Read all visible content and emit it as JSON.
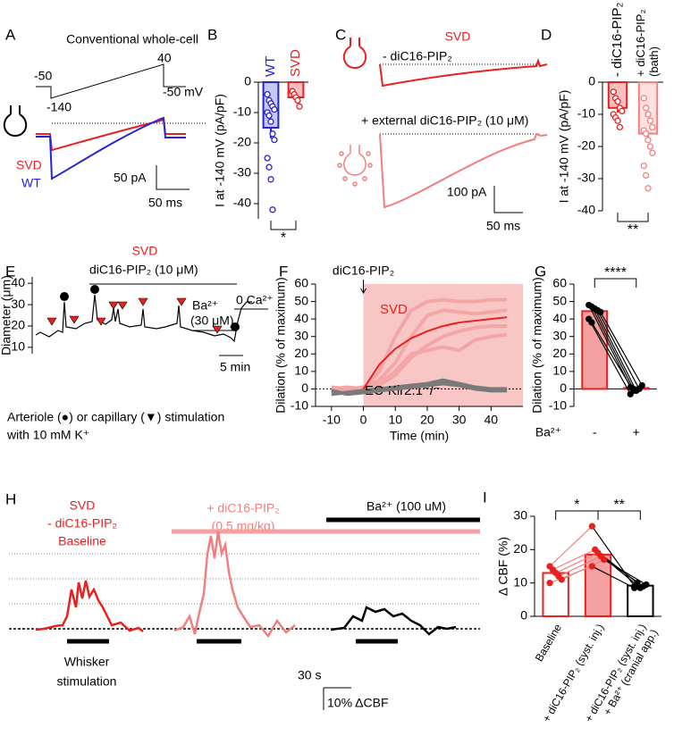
{
  "chart_data": [
    {
      "type": "bar",
      "panel": "B",
      "ylabel": "I at -140 mV (pA/pF)",
      "categories": [
        [
          "WT"
        ],
        [
          "SVD"
        ]
      ],
      "category_colors": [
        "#2424d8",
        "#e8201e"
      ],
      "colors": [
        "#2424d8",
        "#e8201e"
      ],
      "fills": [
        "#c8c8f4",
        "#f8c0c0"
      ],
      "point_colors": [
        "#2424d8",
        "#e8201e"
      ],
      "values": [
        -15,
        -5
      ],
      "errors": [
        3.5,
        1.2
      ],
      "points": [
        [
          -4,
          -6,
          -7,
          -8,
          -9,
          -10,
          -11,
          -13,
          -17,
          -19,
          -25,
          -28,
          -32,
          -42
        ],
        [
          -3,
          -4,
          -5,
          -6,
          -8
        ]
      ],
      "paired": false,
      "category_labels": "top-rotated",
      "ylim": [
        -45,
        0
      ],
      "yticks": [
        0,
        -10,
        -20,
        -30,
        -40
      ],
      "significance": [
        "*"
      ],
      "significance_position": "below"
    },
    {
      "type": "bar",
      "panel": "D",
      "ylabel": "I at -140 mV (pA/pF)",
      "categories": [
        [
          "- diC16-PIP₂"
        ],
        [
          "+ diC16-PIP₂",
          "(bath)"
        ]
      ],
      "colors": [
        "#e8201e",
        "#f08080"
      ],
      "fills": [
        "#f8c0c0",
        "#fde0e0"
      ],
      "point_colors": [
        "#e8201e",
        "#f08080"
      ],
      "values": [
        -8,
        -16
      ],
      "errors": [
        1.5,
        2.5
      ],
      "points": [
        [
          -3,
          -5,
          -6,
          -8,
          -9,
          -10,
          -11,
          -12,
          -14
        ],
        [
          -5,
          -8,
          -10,
          -12,
          -14,
          -15,
          -16,
          -18,
          -20,
          -22,
          -26,
          -29,
          -33
        ]
      ],
      "paired": false,
      "category_labels": "top-rotated",
      "ylim": [
        -40,
        0
      ],
      "yticks": [
        0,
        -10,
        -20,
        -30,
        -40
      ],
      "significance": [
        "**"
      ],
      "significance_position": "below"
    },
    {
      "type": "line",
      "panel": "F",
      "ylabel": "Dilation (% of maximum)",
      "xlabel": "Time (min)",
      "annotation": "diC16-PIP₂",
      "x": [
        -10,
        -5,
        0,
        5,
        10,
        15,
        20,
        25,
        30,
        35,
        40,
        45
      ],
      "series": [
        {
          "color": "#f4a6a6",
          "values": [
            0,
            1,
            0,
            10,
            30,
            45,
            50,
            51,
            50,
            50,
            51,
            51
          ]
        },
        {
          "color": "#f4a6a6",
          "values": [
            -2,
            0,
            1,
            5,
            15,
            30,
            42,
            45,
            44,
            43,
            44,
            45
          ]
        },
        {
          "color": "#f4a6a6",
          "values": [
            1,
            0,
            -2,
            2,
            8,
            18,
            25,
            30,
            33,
            35,
            36,
            36
          ]
        },
        {
          "color": "#f4a6a6",
          "values": [
            0,
            -1,
            0,
            3,
            10,
            20,
            22,
            24,
            22,
            28,
            30,
            31
          ]
        },
        {
          "name": "EC-Kir2.1⁻/⁻",
          "color": "#7a7a7a",
          "values": [
            -3,
            -2,
            -1,
            0,
            1,
            2,
            3,
            5,
            3,
            1,
            0,
            0
          ]
        },
        {
          "color": "#7a7a7a",
          "values": [
            -1,
            -3,
            -2,
            -1,
            0,
            1,
            2,
            3,
            2,
            0,
            -1,
            -1
          ]
        },
        {
          "name": "SVD",
          "color": "#e8201e",
          "values": [
            null,
            null,
            0,
            14,
            23,
            29,
            33,
            36,
            38,
            39,
            40,
            41
          ]
        }
      ],
      "xlim": [
        -15,
        50
      ],
      "xticks": [
        -10,
        0,
        10,
        20,
        30,
        40
      ],
      "ylim": [
        -10,
        60
      ],
      "yticks": [
        -10,
        0,
        10,
        20,
        30,
        40,
        50,
        60
      ],
      "shaded": [
        0,
        50
      ]
    },
    {
      "type": "bar",
      "panel": "G",
      "ylabel": "Dilation (% of maximum)",
      "xlabel": "Ba²⁺",
      "categories": [
        [
          "-"
        ],
        [
          "+"
        ]
      ],
      "colors": [
        "#e8201e",
        "#e8201e"
      ],
      "fills": [
        "#f4a0a0",
        "#f4a0a0"
      ],
      "point_colors": [
        "#000000",
        "#000000"
      ],
      "values": [
        44.5,
        0.5
      ],
      "errors": [
        3,
        1
      ],
      "points": [
        [
          48,
          47,
          46,
          45,
          44,
          40,
          38
        ],
        [
          1,
          0,
          -1,
          0,
          2,
          -3,
          -1
        ]
      ],
      "paired": true,
      "category_labels": "bottom",
      "ylim": [
        -10,
        60
      ],
      "yticks": [
        -10,
        0,
        10,
        20,
        30,
        40,
        50,
        60
      ],
      "significance": [
        "****"
      ],
      "significance_position": "above"
    },
    {
      "type": "bar",
      "panel": "I",
      "ylabel": "Δ CBF (%)",
      "categories": [
        [
          "Baseline"
        ],
        [
          "+ diC16-PIP₂ (syst. inj.)"
        ],
        [
          "+ diC16-PIP₂ (syst. inj.)",
          "+ Ba²⁺ (cranial app.)"
        ]
      ],
      "colors": [
        "#e8201e",
        "#e8201e",
        "#000000"
      ],
      "fills": [
        "#ffffff",
        "#f4a0a0",
        "#ffffff"
      ],
      "point_colors": [
        "#e8201e",
        "#e8201e",
        "#000000"
      ],
      "values": [
        13,
        18.5,
        9.2
      ],
      "errors": [
        1,
        1.5,
        0.4
      ],
      "points": [
        [
          15,
          14,
          13,
          12,
          11,
          10
        ],
        [
          27,
          20,
          19,
          18,
          17,
          15
        ],
        [
          9,
          10,
          8.5,
          9,
          9.5,
          8.5
        ]
      ],
      "paired": true,
      "category_labels": "bottom-rotated",
      "ylim": [
        0,
        30
      ],
      "yticks": [
        0,
        10,
        20,
        30
      ],
      "significance": [
        "*",
        "**"
      ],
      "significance_position": "above"
    }
  ],
  "panels": {
    "A": {
      "letter": "A",
      "title": "Conventional whole-cell",
      "protocol_labels": [
        "-50",
        "40",
        "-140",
        "-50 mV"
      ],
      "trace_labels": [
        "SVD",
        "WT"
      ],
      "scale": [
        "50 pA",
        "50 ms"
      ]
    },
    "C": {
      "letter": "C",
      "title": "SVD",
      "trace_labels": [
        "- diC16-PIP₂",
        "+ external diC16-PIP₂ (10 μM)"
      ],
      "scale": [
        "100 pA",
        "50 ms"
      ]
    },
    "E": {
      "letter": "E",
      "title": "SVD",
      "ylabel": "Diameter (μm)",
      "ylim": [
        7,
        43
      ],
      "yticks": [
        10,
        20,
        30,
        40
      ],
      "annotations": [
        "diC16-PIP₂ (10 μM)",
        "Ba²⁺",
        "(30 μM)",
        "0 Ca²⁺"
      ],
      "scale": "5 min",
      "caption": [
        "Arteriole (●) or capillary (▼) stimulation",
        "with 10 mM K⁺"
      ]
    },
    "H": {
      "letter": "H",
      "conditions": [
        [
          "SVD",
          "- diC16-PIP₂",
          "Baseline"
        ],
        [
          "+ diC16-PIP₂",
          "(0.5 mg/kg)"
        ],
        [
          "Ba²⁺  (100 uM)"
        ]
      ],
      "stimulus": [
        "Whisker",
        "stimulation"
      ],
      "scale": [
        "30 s",
        "10% ΔCBF"
      ]
    }
  }
}
